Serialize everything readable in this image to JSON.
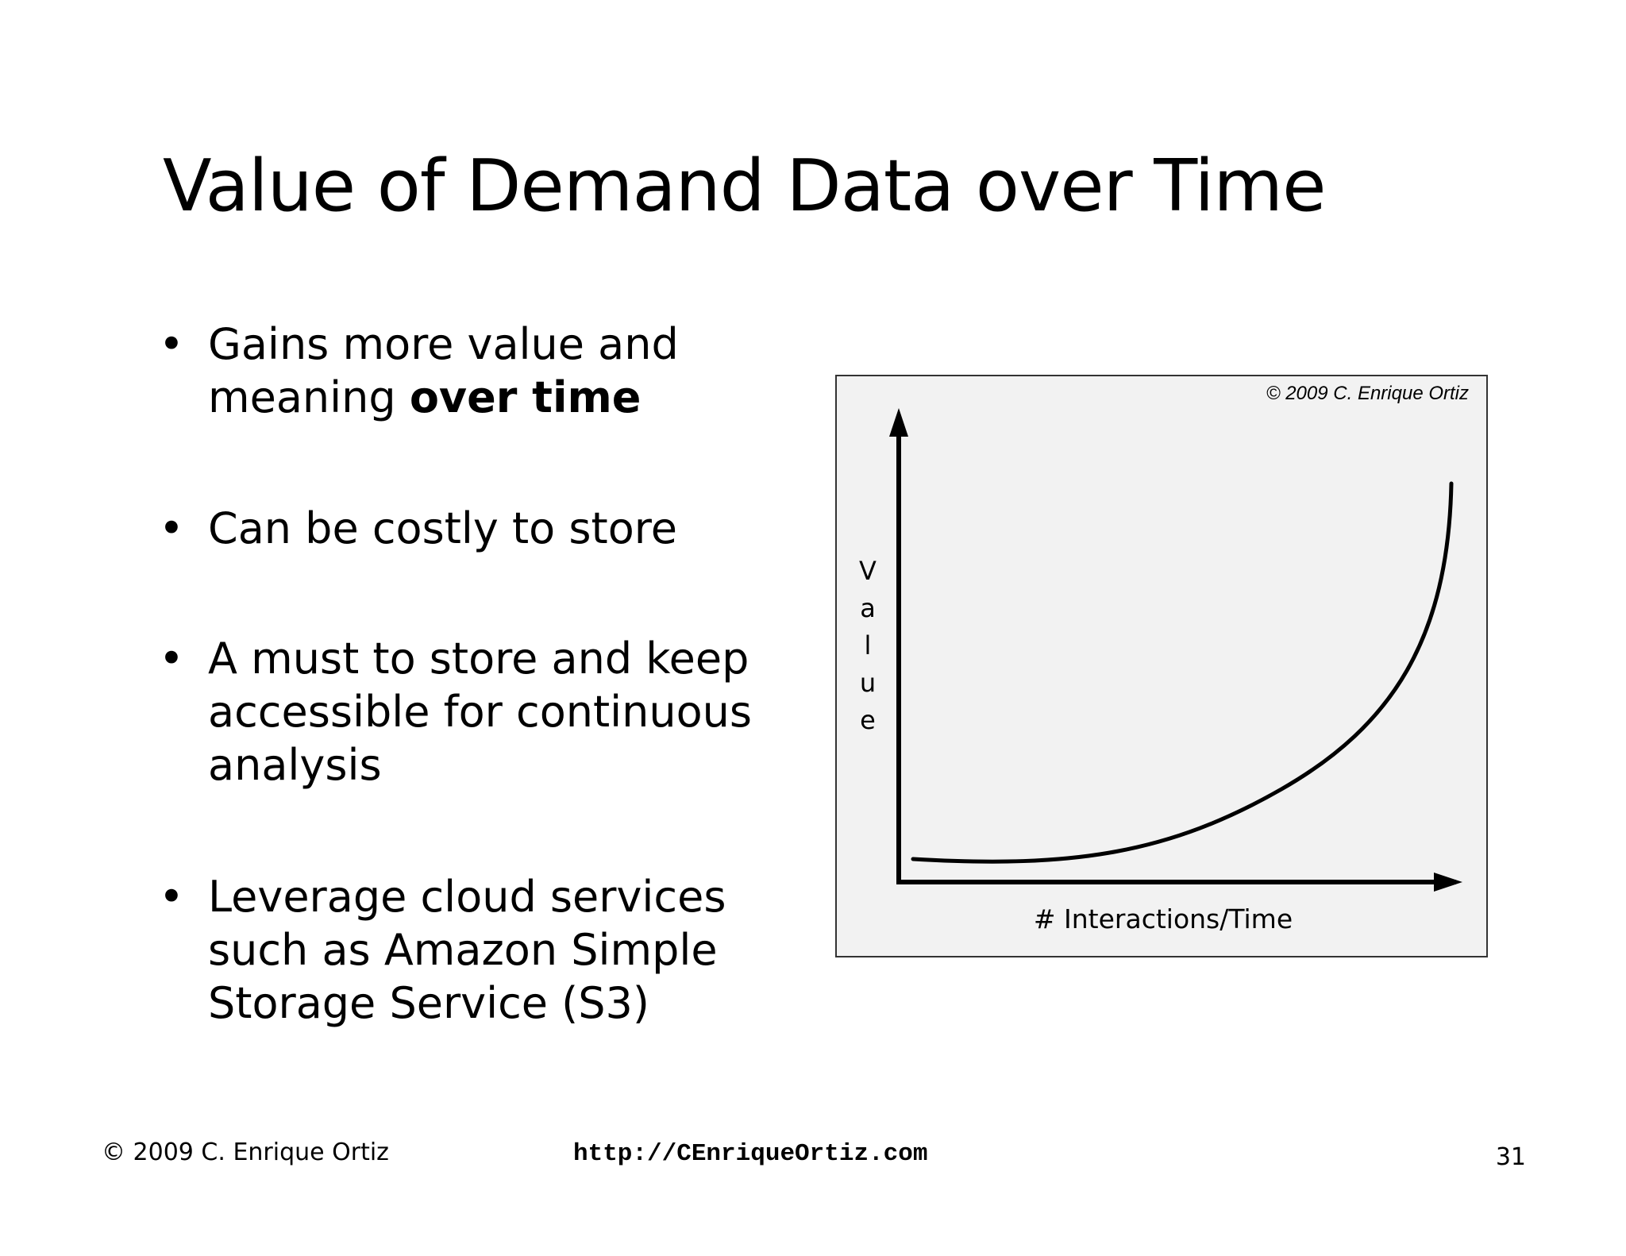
{
  "slide": {
    "title": "Value of Demand Data over Time",
    "bullets": [
      {
        "text": "Gains more value and meaning ",
        "bold": "over time"
      },
      {
        "text": "Can be costly to store",
        "bold": ""
      },
      {
        "text": "A must to store and keep accessible for continuous analysis",
        "bold": ""
      },
      {
        "text": "Leverage cloud services such as Amazon Simple Storage Service (S3)",
        "bold": ""
      }
    ],
    "bullet_glyph": "•"
  },
  "chart": {
    "copyright": "© 2009 C. Enrique Ortiz",
    "y_label_letters": [
      "V",
      "a",
      "l",
      "u",
      "e"
    ],
    "x_label": "# Interactions/Time",
    "curve_color": "#000000",
    "background_color": "#f2f2f2"
  },
  "footer": {
    "copyright": "© 2009 C. Enrique Ortiz",
    "url": "http://CEnriqueOrtiz.com",
    "page_number": "31"
  }
}
